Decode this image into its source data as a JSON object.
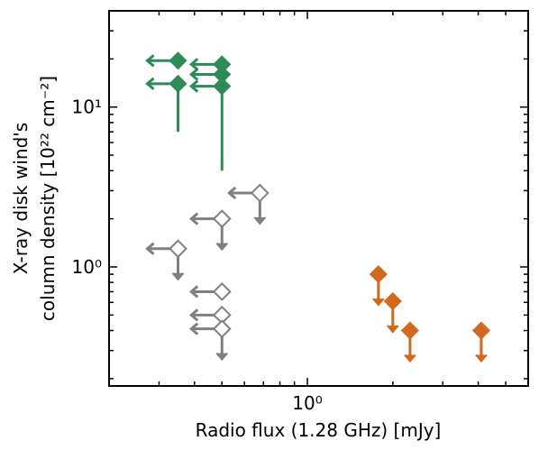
{
  "chart_data": {
    "type": "scatter",
    "x_scale": "log",
    "y_scale": "log",
    "xlim": [
      0.2,
      6.0
    ],
    "ylim": [
      0.18,
      40
    ],
    "xlabel": "Radio flux (1.28 GHz) [mJy]",
    "ylabel_line1": "X-ray disk wind's",
    "ylabel_line2": "column density [10²² cm⁻²]",
    "x_ticks": [
      {
        "value": 1.0,
        "label": "10⁰"
      }
    ],
    "y_ticks": [
      {
        "value": 1.0,
        "label": "10⁰"
      },
      {
        "value": 10.0,
        "label": "10¹"
      }
    ],
    "grid": false,
    "legend": "none",
    "colors": {
      "green": "#2e8b57",
      "gray": "#808080",
      "orange": "#d2691e"
    },
    "series": [
      {
        "color": "green",
        "marker": "filled-diamond",
        "points": [
          {
            "x": 0.35,
            "y": 19.5,
            "x_upper_limit": true
          },
          {
            "x": 0.35,
            "y": 14.0,
            "x_upper_limit": true,
            "yerr_low": 7.0
          },
          {
            "x": 0.5,
            "y": 18.5,
            "x_upper_limit": true
          },
          {
            "x": 0.5,
            "y": 16.0,
            "x_upper_limit": true
          },
          {
            "x": 0.5,
            "y": 13.5,
            "x_upper_limit": true,
            "yerr_low": 4.0
          }
        ]
      },
      {
        "color": "gray",
        "marker": "open-diamond",
        "points": [
          {
            "x": 0.68,
            "y": 2.9,
            "x_upper_limit": true,
            "y_upper_limit": true
          },
          {
            "x": 0.5,
            "y": 2.0,
            "x_upper_limit": true,
            "y_upper_limit": true
          },
          {
            "x": 0.35,
            "y": 1.3,
            "x_upper_limit": true,
            "y_upper_limit": true
          },
          {
            "x": 0.5,
            "y": 0.7,
            "x_upper_limit": true
          },
          {
            "x": 0.5,
            "y": 0.5,
            "x_upper_limit": true
          },
          {
            "x": 0.5,
            "y": 0.41,
            "x_upper_limit": true,
            "y_upper_limit": true
          }
        ]
      },
      {
        "color": "orange",
        "marker": "filled-diamond",
        "points": [
          {
            "x": 1.78,
            "y": 0.9,
            "y_upper_limit": true
          },
          {
            "x": 2.0,
            "y": 0.61,
            "y_upper_limit": true
          },
          {
            "x": 2.3,
            "y": 0.4,
            "y_upper_limit": true
          },
          {
            "x": 4.1,
            "y": 0.4,
            "y_upper_limit": true
          }
        ]
      }
    ]
  }
}
